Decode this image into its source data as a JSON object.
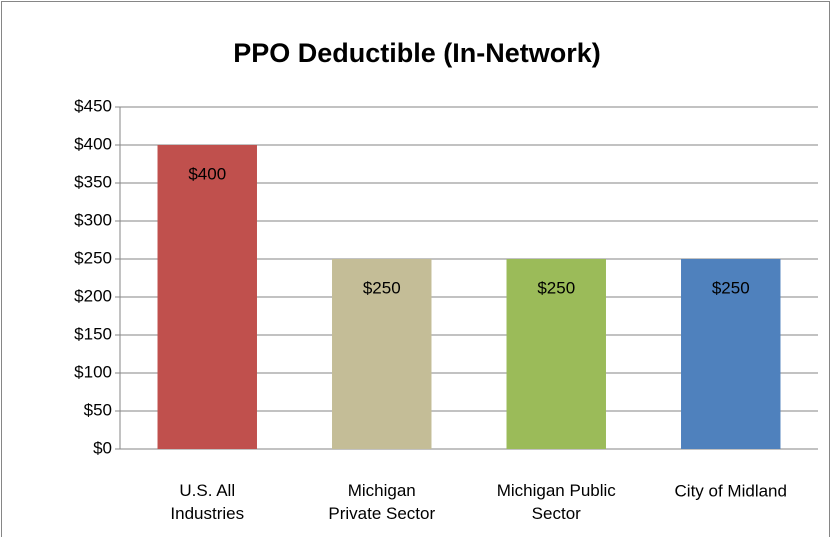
{
  "chart_data": {
    "type": "bar",
    "title": "PPO Deductible (In-Network)",
    "categories": [
      "U.S. All\nIndustries",
      "Michigan\nPrivate Sector",
      "Michigan Public\nSector",
      "City of Midland"
    ],
    "values": [
      400,
      250,
      250,
      250
    ],
    "value_labels": [
      "$400",
      "$250",
      "$250",
      "$250"
    ],
    "colors": [
      "#c0504d",
      "#c4bd97",
      "#9bbb59",
      "#4f81bd"
    ],
    "ylim": [
      0,
      450
    ],
    "yticks": [
      {
        "value": 0,
        "label": "$0"
      },
      {
        "value": 50,
        "label": "$50"
      },
      {
        "value": 100,
        "label": "$100"
      },
      {
        "value": 150,
        "label": "$150"
      },
      {
        "value": 200,
        "label": "$200"
      },
      {
        "value": 250,
        "label": "$250"
      },
      {
        "value": 300,
        "label": "$300"
      },
      {
        "value": 350,
        "label": "$350"
      },
      {
        "value": 400,
        "label": "$400"
      },
      {
        "value": 450,
        "label": "$450"
      }
    ],
    "grid": true
  }
}
